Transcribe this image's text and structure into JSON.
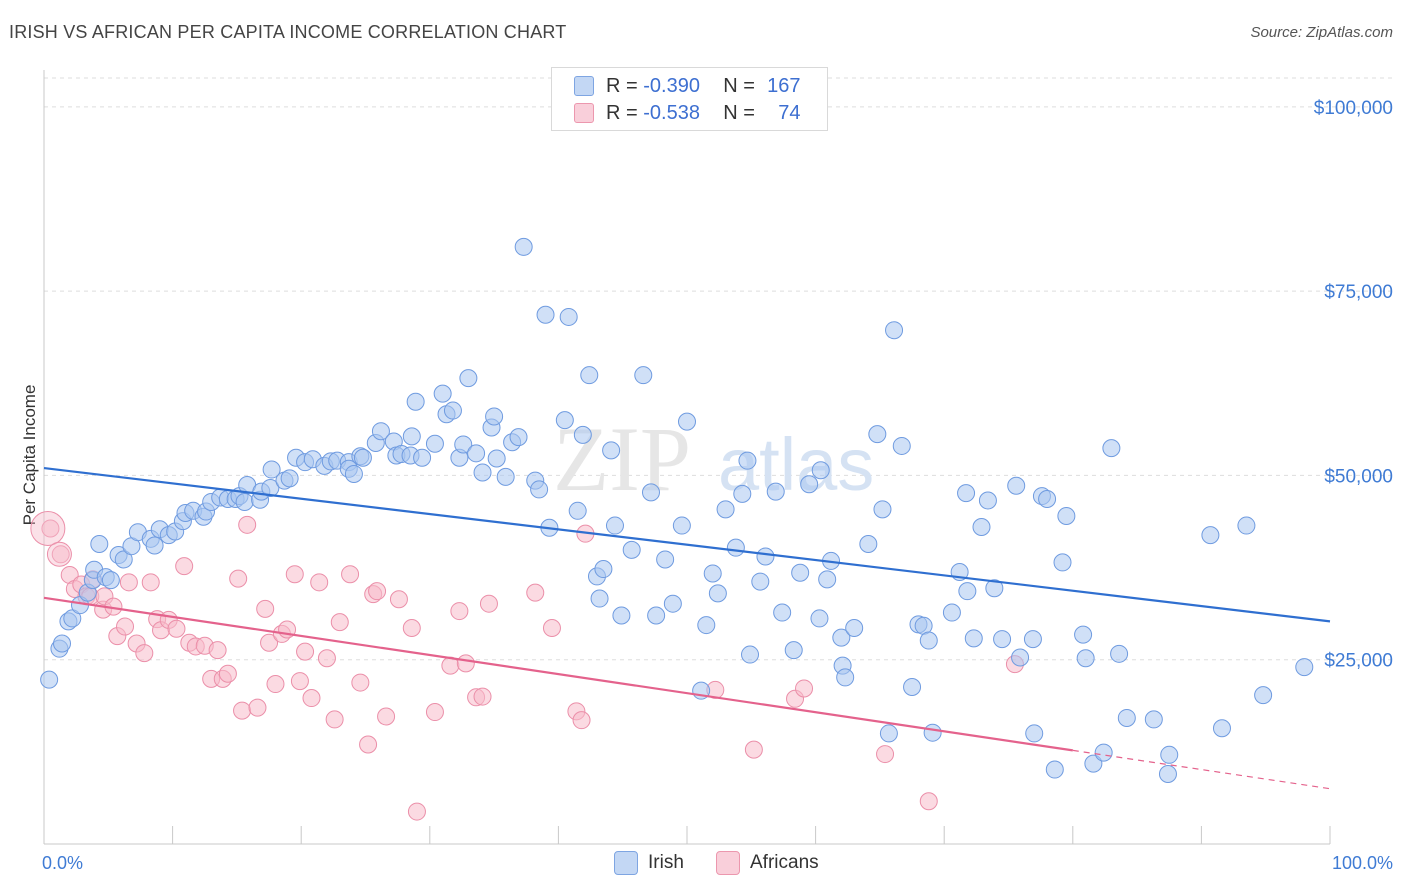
{
  "header": {
    "title": "IRISH VS AFRICAN PER CAPITA INCOME CORRELATION CHART",
    "source": "Source: ZipAtlas.com"
  },
  "legend": {
    "irish": {
      "r_label": "R =",
      "r_value": "-0.390",
      "n_label": "N =",
      "n_value": "167"
    },
    "africans": {
      "r_label": "R =",
      "r_value": "-0.538",
      "n_label": "N =",
      "n_value": "74"
    }
  },
  "watermark": {
    "zip": "ZIP",
    "atlas": "atlas"
  },
  "colors": {
    "irish_fill": "#a9c7f0",
    "irish_stroke": "#6f9be0",
    "irish_line": "#2f6fd0",
    "africans_fill": "#f7bccb",
    "africans_stroke": "#eb8fa9",
    "africans_line": "#e4628c",
    "tick_label": "#3f7bd4"
  },
  "chart_data": {
    "type": "scatter",
    "title": "IRISH VS AFRICAN PER CAPITA INCOME CORRELATION CHART",
    "ylabel": "Per Capita Income",
    "xlabel": "",
    "xlim": [
      0,
      100
    ],
    "ylim": [
      0,
      105000
    ],
    "x_tick_labels": [
      "0.0%",
      "100.0%"
    ],
    "y_ticks": [
      25000,
      50000,
      75000,
      100000
    ],
    "y_tick_labels": [
      "$25,000",
      "$50,000",
      "$75,000",
      "$100,000"
    ],
    "grid": "horizontal dashed",
    "legend_position": "top-center",
    "series": [
      {
        "name": "Irish",
        "r": -0.39,
        "n": 167,
        "trend": {
          "x": [
            0,
            100
          ],
          "y": [
            51000,
            30200
          ]
        },
        "points": [
          [
            0.4,
            22300
          ],
          [
            1.2,
            26500
          ],
          [
            1.4,
            27200
          ],
          [
            1.9,
            30200
          ],
          [
            2.2,
            30600
          ],
          [
            2.8,
            32400
          ],
          [
            3.4,
            34100
          ],
          [
            3.8,
            35800
          ],
          [
            3.9,
            37200
          ],
          [
            4.3,
            40700
          ],
          [
            4.8,
            36200
          ],
          [
            5.2,
            35800
          ],
          [
            5.8,
            39200
          ],
          [
            6.2,
            38600
          ],
          [
            6.8,
            40400
          ],
          [
            7.3,
            42300
          ],
          [
            8.3,
            41400
          ],
          [
            8.6,
            40500
          ],
          [
            9.0,
            42700
          ],
          [
            9.7,
            41900
          ],
          [
            10.2,
            42400
          ],
          [
            10.8,
            43800
          ],
          [
            11.0,
            44900
          ],
          [
            11.6,
            45200
          ],
          [
            12.4,
            44400
          ],
          [
            12.6,
            45100
          ],
          [
            13.0,
            46400
          ],
          [
            13.7,
            47000
          ],
          [
            14.3,
            46800
          ],
          [
            14.9,
            46800
          ],
          [
            15.2,
            47200
          ],
          [
            15.6,
            46400
          ],
          [
            15.8,
            48700
          ],
          [
            16.8,
            46700
          ],
          [
            16.9,
            47800
          ],
          [
            17.6,
            48300
          ],
          [
            17.7,
            50800
          ],
          [
            18.7,
            49300
          ],
          [
            19.1,
            49600
          ],
          [
            19.6,
            52400
          ],
          [
            20.3,
            51800
          ],
          [
            20.9,
            52200
          ],
          [
            21.8,
            51300
          ],
          [
            22.3,
            51900
          ],
          [
            22.8,
            52000
          ],
          [
            23.7,
            51800
          ],
          [
            23.7,
            50900
          ],
          [
            24.1,
            50200
          ],
          [
            24.6,
            52600
          ],
          [
            24.8,
            52400
          ],
          [
            25.8,
            54400
          ],
          [
            26.2,
            56000
          ],
          [
            27.2,
            54600
          ],
          [
            27.4,
            52700
          ],
          [
            27.8,
            52900
          ],
          [
            28.5,
            52700
          ],
          [
            28.6,
            55300
          ],
          [
            28.9,
            60000
          ],
          [
            29.4,
            52400
          ],
          [
            30.4,
            54300
          ],
          [
            31.0,
            61100
          ],
          [
            31.3,
            58300
          ],
          [
            31.8,
            58800
          ],
          [
            32.3,
            52400
          ],
          [
            32.6,
            54200
          ],
          [
            33.0,
            63200
          ],
          [
            33.6,
            53000
          ],
          [
            34.1,
            50400
          ],
          [
            34.8,
            56500
          ],
          [
            35.0,
            58000
          ],
          [
            35.2,
            52300
          ],
          [
            35.9,
            49800
          ],
          [
            36.4,
            54500
          ],
          [
            36.9,
            55200
          ],
          [
            37.3,
            81000
          ],
          [
            38.2,
            49300
          ],
          [
            38.5,
            48100
          ],
          [
            39.0,
            71800
          ],
          [
            39.3,
            42900
          ],
          [
            40.5,
            57500
          ],
          [
            40.8,
            71500
          ],
          [
            41.5,
            45200
          ],
          [
            41.9,
            55500
          ],
          [
            42.4,
            63600
          ],
          [
            43.0,
            36300
          ],
          [
            43.2,
            33300
          ],
          [
            43.5,
            37300
          ],
          [
            44.1,
            53400
          ],
          [
            44.4,
            43200
          ],
          [
            44.9,
            31000
          ],
          [
            45.7,
            39900
          ],
          [
            46.6,
            63600
          ],
          [
            47.2,
            47700
          ],
          [
            47.6,
            31000
          ],
          [
            48.3,
            38600
          ],
          [
            48.9,
            32600
          ],
          [
            49.6,
            43200
          ],
          [
            50.0,
            57300
          ],
          [
            51.1,
            20800
          ],
          [
            51.5,
            29700
          ],
          [
            52.0,
            36700
          ],
          [
            52.4,
            34000
          ],
          [
            53.0,
            45400
          ],
          [
            53.8,
            40200
          ],
          [
            54.3,
            47500
          ],
          [
            54.7,
            52000
          ],
          [
            54.9,
            25700
          ],
          [
            55.7,
            35600
          ],
          [
            56.1,
            39000
          ],
          [
            56.9,
            47800
          ],
          [
            57.4,
            31400
          ],
          [
            58.3,
            26300
          ],
          [
            58.8,
            36800
          ],
          [
            59.5,
            48800
          ],
          [
            60.3,
            30600
          ],
          [
            60.4,
            50700
          ],
          [
            60.9,
            35900
          ],
          [
            61.2,
            38400
          ],
          [
            62.0,
            28000
          ],
          [
            62.1,
            24200
          ],
          [
            62.3,
            22600
          ],
          [
            63.0,
            29300
          ],
          [
            64.1,
            40700
          ],
          [
            64.8,
            55600
          ],
          [
            65.2,
            45400
          ],
          [
            65.7,
            15000
          ],
          [
            66.1,
            69700
          ],
          [
            66.7,
            54000
          ],
          [
            67.5,
            21300
          ],
          [
            68.0,
            29800
          ],
          [
            68.4,
            29600
          ],
          [
            68.8,
            27600
          ],
          [
            69.1,
            15100
          ],
          [
            70.6,
            31400
          ],
          [
            71.2,
            36900
          ],
          [
            71.7,
            47600
          ],
          [
            71.8,
            34300
          ],
          [
            72.3,
            27900
          ],
          [
            72.9,
            43000
          ],
          [
            73.4,
            46600
          ],
          [
            73.9,
            34700
          ],
          [
            74.5,
            27800
          ],
          [
            75.6,
            48600
          ],
          [
            75.9,
            25300
          ],
          [
            76.9,
            27800
          ],
          [
            77.0,
            15000
          ],
          [
            77.6,
            47200
          ],
          [
            78.0,
            46800
          ],
          [
            78.6,
            10100
          ],
          [
            79.2,
            38200
          ],
          [
            79.5,
            44500
          ],
          [
            80.8,
            28400
          ],
          [
            81.0,
            25200
          ],
          [
            81.6,
            10900
          ],
          [
            82.4,
            12400
          ],
          [
            83.0,
            53700
          ],
          [
            83.6,
            25800
          ],
          [
            84.2,
            17100
          ],
          [
            86.3,
            16900
          ],
          [
            87.4,
            9500
          ],
          [
            87.5,
            12100
          ],
          [
            90.7,
            41900
          ],
          [
            91.6,
            15700
          ],
          [
            93.5,
            43200
          ],
          [
            94.8,
            20200
          ],
          [
            98.0,
            24000
          ]
        ]
      },
      {
        "name": "Africans",
        "r": -0.538,
        "n": 74,
        "trend": {
          "x": [
            0,
            80
          ],
          "y": [
            33400,
            12700
          ]
        },
        "trend_extension": {
          "x": [
            80,
            100
          ],
          "y": [
            12700,
            7500
          ]
        },
        "points": [
          [
            0.5,
            42800
          ],
          [
            1.3,
            39300
          ],
          [
            2.0,
            36500
          ],
          [
            2.4,
            34600
          ],
          [
            2.9,
            35200
          ],
          [
            3.3,
            33600
          ],
          [
            3.6,
            33600
          ],
          [
            3.8,
            35900
          ],
          [
            4.6,
            31800
          ],
          [
            4.7,
            33600
          ],
          [
            5.4,
            32200
          ],
          [
            5.7,
            28200
          ],
          [
            6.3,
            29500
          ],
          [
            6.6,
            35500
          ],
          [
            7.2,
            27200
          ],
          [
            7.8,
            25900
          ],
          [
            8.3,
            35500
          ],
          [
            8.8,
            30500
          ],
          [
            9.1,
            29000
          ],
          [
            9.7,
            30400
          ],
          [
            10.3,
            29200
          ],
          [
            10.9,
            37700
          ],
          [
            11.3,
            27300
          ],
          [
            11.8,
            26800
          ],
          [
            12.5,
            26900
          ],
          [
            13.0,
            22400
          ],
          [
            13.5,
            26300
          ],
          [
            13.9,
            22400
          ],
          [
            14.3,
            23100
          ],
          [
            15.1,
            36000
          ],
          [
            15.4,
            18100
          ],
          [
            15.8,
            43300
          ],
          [
            16.6,
            18500
          ],
          [
            17.2,
            31900
          ],
          [
            17.5,
            27300
          ],
          [
            18.0,
            21700
          ],
          [
            18.5,
            28500
          ],
          [
            18.9,
            29100
          ],
          [
            19.5,
            36600
          ],
          [
            19.9,
            22100
          ],
          [
            20.3,
            26100
          ],
          [
            20.8,
            19800
          ],
          [
            21.4,
            35500
          ],
          [
            22.0,
            25200
          ],
          [
            22.6,
            16900
          ],
          [
            23.0,
            30100
          ],
          [
            23.8,
            36600
          ],
          [
            24.6,
            21900
          ],
          [
            25.2,
            13500
          ],
          [
            25.6,
            33900
          ],
          [
            25.9,
            34300
          ],
          [
            26.6,
            17300
          ],
          [
            27.6,
            33200
          ],
          [
            28.6,
            29300
          ],
          [
            29.0,
            4400
          ],
          [
            30.4,
            17900
          ],
          [
            31.6,
            24200
          ],
          [
            32.3,
            31600
          ],
          [
            32.8,
            24500
          ],
          [
            33.6,
            19900
          ],
          [
            34.1,
            20000
          ],
          [
            34.6,
            32600
          ],
          [
            38.2,
            34100
          ],
          [
            39.5,
            29300
          ],
          [
            41.4,
            18000
          ],
          [
            41.8,
            16800
          ],
          [
            42.1,
            42100
          ],
          [
            52.2,
            20900
          ],
          [
            55.2,
            12800
          ],
          [
            58.4,
            19700
          ],
          [
            59.1,
            21100
          ],
          [
            65.4,
            12200
          ],
          [
            68.8,
            5800
          ],
          [
            75.5,
            24400
          ]
        ]
      }
    ]
  }
}
